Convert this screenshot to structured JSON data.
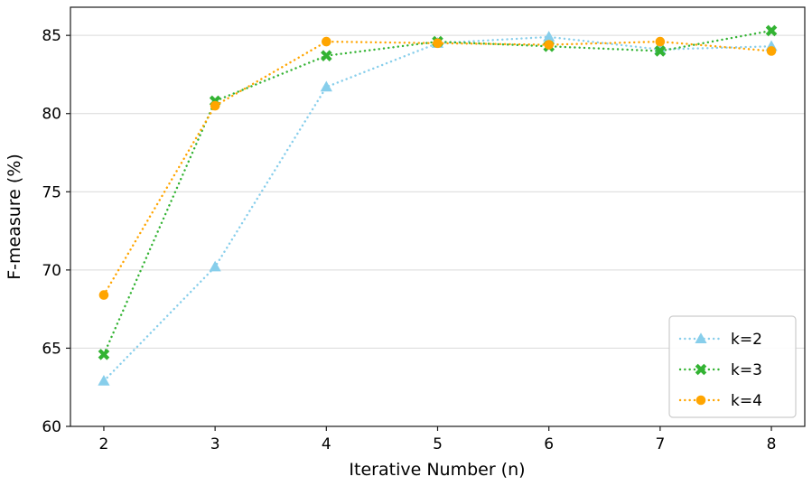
{
  "figure": {
    "background": "#ffffff",
    "axis_color": "#1a1a1a",
    "grid_color": "#d9d9d9",
    "legend_border_color": "#cccccc",
    "legend_background": "#ffffff"
  },
  "chart_data": {
    "type": "line",
    "title": "",
    "xlabel": "Iterative Number (n)",
    "ylabel": "F-measure (%)",
    "x": [
      2,
      3,
      4,
      5,
      6,
      7,
      8
    ],
    "series": [
      {
        "name": "k=2",
        "color": "#87ceeb",
        "marker": "triangle",
        "linestyle": "dotted",
        "values": [
          62.9,
          70.2,
          81.7,
          84.5,
          84.9,
          84.1,
          84.3
        ]
      },
      {
        "name": "k=3",
        "color": "#33b333",
        "marker": "x",
        "linestyle": "dotted",
        "values": [
          64.6,
          80.8,
          83.7,
          84.6,
          84.3,
          84.0,
          85.3
        ]
      },
      {
        "name": "k=4",
        "color": "#ffa500",
        "marker": "circle",
        "linestyle": "dotted",
        "values": [
          68.4,
          80.5,
          84.6,
          84.5,
          84.4,
          84.6,
          84.0
        ]
      }
    ],
    "xticks": [
      2,
      3,
      4,
      5,
      6,
      7,
      8
    ],
    "yticks": [
      60,
      65,
      70,
      75,
      80,
      85
    ],
    "xlim": [
      1.7,
      8.3
    ],
    "ylim": [
      60,
      86.8
    ],
    "grid": "horizontal",
    "legend": {
      "position": "lower right",
      "entries": [
        "k=2",
        "k=3",
        "k=4"
      ]
    }
  }
}
